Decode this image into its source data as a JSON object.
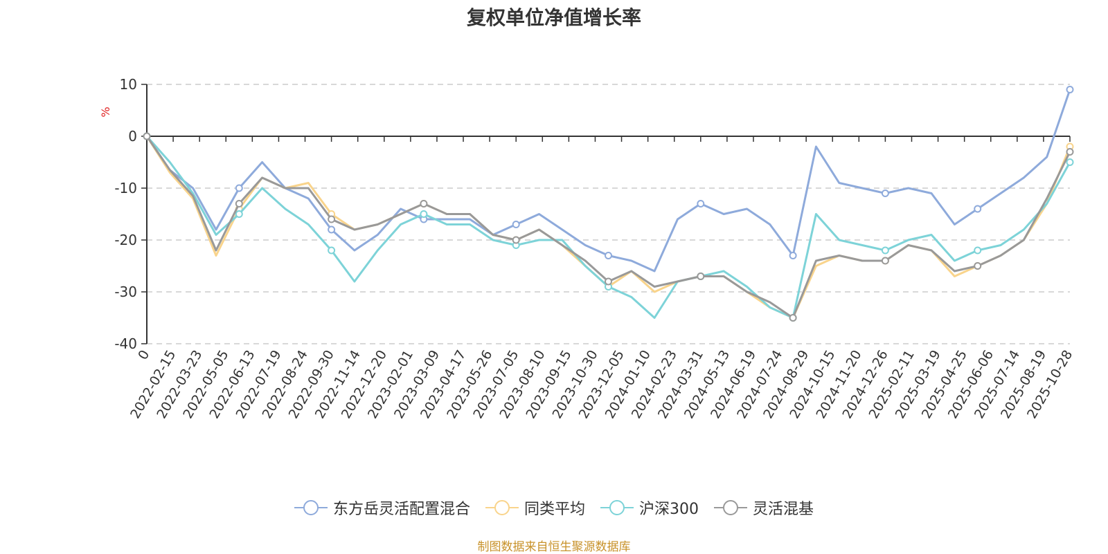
{
  "chart_data": {
    "type": "line",
    "title": "复权单位净值增长率",
    "ylabel": "%",
    "ylim": [
      -40,
      10
    ],
    "y_ticks": [
      10,
      0,
      -10,
      -20,
      -30,
      -40
    ],
    "x_origin_label": "0",
    "x_ticks": [
      "2022-02-15",
      "2022-03-23",
      "2022-05-05",
      "2022-06-13",
      "2022-07-19",
      "2022-08-24",
      "2022-09-30",
      "2022-11-14",
      "2022-12-20",
      "2023-02-01",
      "2023-03-09",
      "2023-04-17",
      "2023-05-26",
      "2023-07-05",
      "2023-08-10",
      "2023-09-15",
      "2023-10-30",
      "2023-12-05",
      "2024-01-10",
      "2024-02-23",
      "2024-03-31",
      "2024-05-13",
      "2024-06-19",
      "2024-07-24",
      "2024-08-29",
      "2024-10-15",
      "2024-11-20",
      "2024-12-26",
      "2025-02-11",
      "2025-03-19",
      "2025-04-25",
      "2025-06-06",
      "2025-07-14",
      "2025-08-19",
      "2025-10-28"
    ],
    "grid": true,
    "legend_position": "bottom",
    "series": [
      {
        "name": "东方岳灵活配置混合",
        "color": "#8eaadb",
        "values": [
          0,
          -6.5,
          -10,
          -18,
          -10,
          -5,
          -10,
          -12,
          -18,
          -22,
          -19,
          -14,
          -16,
          -16,
          -16,
          -19,
          -17,
          -15,
          -18,
          -21,
          -23,
          -24,
          -26,
          -16,
          -13,
          -15,
          -14,
          -17,
          -23,
          -2,
          -9,
          -10,
          -11,
          -10,
          -11,
          -17,
          -14,
          -11,
          -8,
          -4,
          9
        ]
      },
      {
        "name": "同类平均",
        "color": "#f9d48c",
        "values": [
          0,
          -7,
          -12,
          -23,
          -14,
          -8,
          -10,
          -9,
          -15,
          -18,
          -17,
          -15,
          -13,
          -15,
          -15,
          -19,
          -20,
          -18,
          -21,
          -25,
          -29,
          -26,
          -30,
          -28,
          -27,
          -27,
          -30,
          -33,
          -35,
          -25,
          -23,
          -24,
          -24,
          -21,
          -22,
          -27,
          -25,
          -23,
          -20,
          -13,
          -2
        ]
      },
      {
        "name": "沪深300",
        "color": "#7dd3d8",
        "values": [
          0,
          -5,
          -11,
          -19,
          -15,
          -10,
          -14,
          -17,
          -22,
          -28,
          -22,
          -17,
          -15,
          -17,
          -17,
          -20,
          -21,
          -20,
          -20,
          -25,
          -29,
          -31,
          -35,
          -28,
          -27,
          -26,
          -29,
          -33,
          -35,
          -15,
          -20,
          -21,
          -22,
          -20,
          -19,
          -24,
          -22,
          -21,
          -18,
          -13,
          -5
        ]
      },
      {
        "name": "灵活混基",
        "color": "#999999",
        "values": [
          0,
          -6.5,
          -11.5,
          -22,
          -13,
          -8,
          -10,
          -10,
          -16,
          -18,
          -17,
          -15,
          -13,
          -15,
          -15,
          -19,
          -20,
          -18,
          -21,
          -24,
          -28,
          -26,
          -29,
          -28,
          -27,
          -27,
          -30,
          -32,
          -35,
          -24,
          -23,
          -24,
          -24,
          -21,
          -22,
          -26,
          -25,
          -23,
          -20,
          -12,
          -3
        ]
      }
    ]
  },
  "source_note": "制图数据来自恒生聚源数据库"
}
